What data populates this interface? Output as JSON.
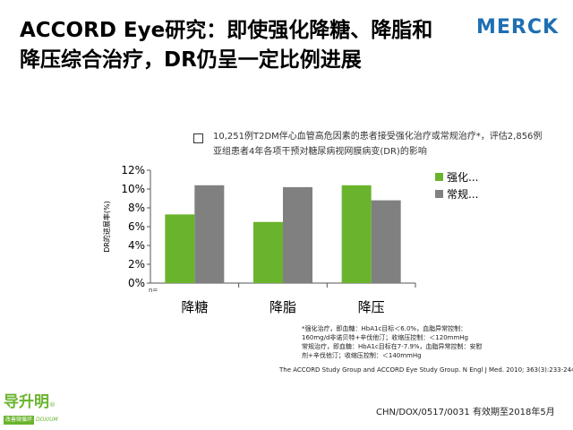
{
  "header": {
    "title_line1": "ACCORD Eye研究：即使强化降糖、降脂和",
    "title_line2": "降压综合治疗，DR仍呈一定比例进展",
    "logo_text": "MERCK"
  },
  "description": {
    "line1": "10,251例T2DM伴心血管高危因素的患者接受强化治疗或常规治疗*，评估2,856例",
    "line2": "亚组患者4年各项干预对糖尿病视网膜病变(DR)的影响"
  },
  "chart_data": {
    "type": "bar",
    "categories": [
      "降糖",
      "降脂",
      "降压"
    ],
    "series": [
      {
        "name": "强化...",
        "values": [
          7.3,
          6.5,
          10.4
        ],
        "color": "#6ab42d"
      },
      {
        "name": "常规...",
        "values": [
          10.4,
          10.2,
          8.8
        ],
        "color": "#808080"
      }
    ],
    "ylabel": "DR的进展率(%)",
    "ylim": [
      0,
      12
    ],
    "yticks": [
      "0%",
      "2%",
      "4%",
      "6%",
      "8%",
      "10%",
      "12%"
    ],
    "grid": false,
    "legend_position": "right",
    "corner_label": "n="
  },
  "footnote": {
    "line1": "*强化治疗，即血糖：HbA1c目标＜6.0%，血脂异常控制：",
    "line2": "160mg/d非诺贝特+辛伐他汀；收缩压控制：＜120mmHg",
    "line3": "常规治疗，即血糖：HbA1c目标在7-7.9%，血脂异常控制：安慰",
    "line4": "剂+辛伐他汀；收缩压控制：＜140mmHg"
  },
  "reference": "The ACCORD Study Group and ACCORD Eye Study Group. N Engl J Med. 2010; 363(3):233-244.",
  "footer": {
    "code": "CHN/DOX/0517/0031 有效期至2018年5月",
    "brand_name": "导升明",
    "brand_tm": "®",
    "brand_left": "改善微循环",
    "brand_right": "DOXIUM"
  }
}
